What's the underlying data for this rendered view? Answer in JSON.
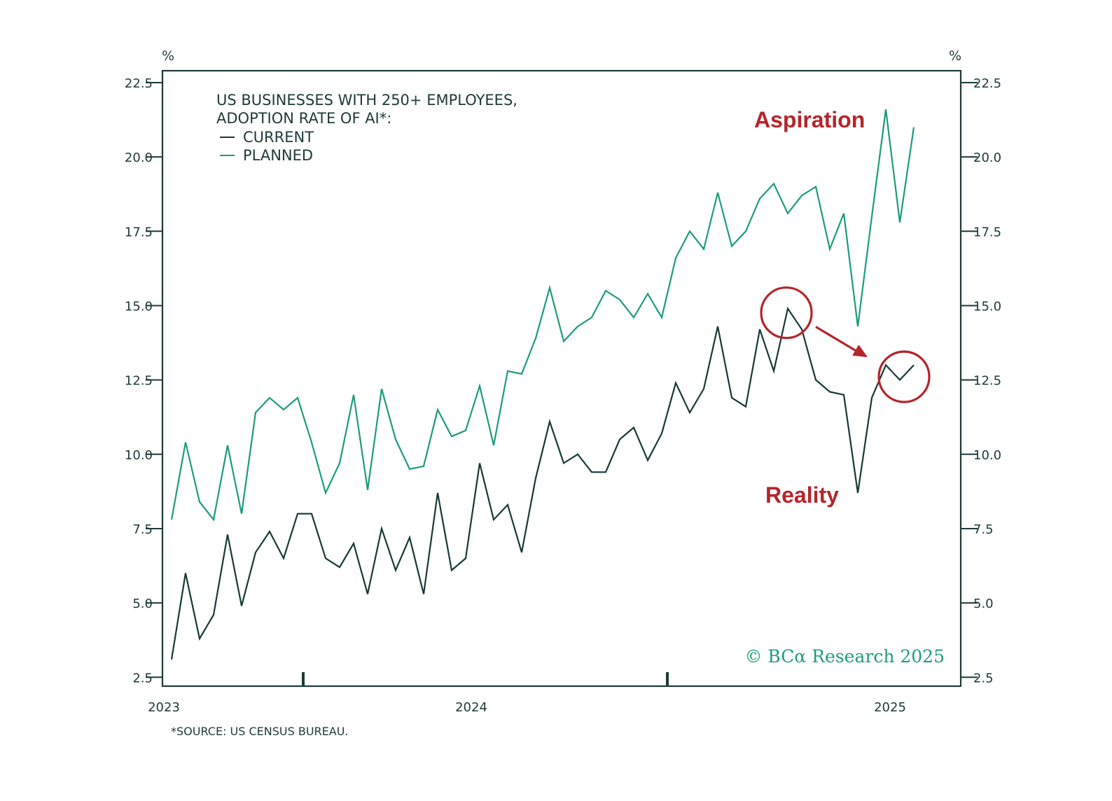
{
  "chart_data": {
    "type": "line",
    "title_lines": [
      "US BUSINESSES WITH 250+ EMPLOYEES,",
      "ADOPTION RATE OF AI*:"
    ],
    "y_unit_left": "%",
    "y_unit_right": "%",
    "ylim": [
      2.2,
      22.9
    ],
    "y_ticks": [
      "2.5",
      "5.0",
      "7.5",
      "10.0",
      "12.5",
      "15.0",
      "17.5",
      "20.0",
      "22.5"
    ],
    "x_tick_labels": [
      "2023",
      "2024",
      "2025"
    ],
    "x_label_positions": [
      0,
      22,
      52.5
    ],
    "x_minor_ticks": [
      9,
      35
    ],
    "xlim": [
      0,
      57
    ],
    "grid": false,
    "legend_placement": "top-left",
    "series": [
      {
        "name": "CURRENT",
        "color": "#163a36",
        "values": [
          3.1,
          6.0,
          3.8,
          4.6,
          7.3,
          4.9,
          6.7,
          7.4,
          6.5,
          8.0,
          8.0,
          6.5,
          6.2,
          7.0,
          5.3,
          7.5,
          6.1,
          7.2,
          5.3,
          8.7,
          6.1,
          6.5,
          9.7,
          7.8,
          8.3,
          6.7,
          9.2,
          11.1,
          9.7,
          10.0,
          9.4,
          9.4,
          10.5,
          10.9,
          9.8,
          10.7,
          12.4,
          11.4,
          12.2,
          14.3,
          11.9,
          11.6,
          14.2,
          12.8,
          14.9,
          14.2,
          12.5,
          12.1,
          12.0,
          8.7,
          11.9,
          13.0,
          12.5,
          13.0
        ]
      },
      {
        "name": "PLANNED",
        "color": "#1c9c7c",
        "values": [
          7.8,
          10.4,
          8.4,
          7.8,
          10.3,
          8.0,
          11.4,
          11.9,
          11.5,
          11.9,
          10.4,
          8.7,
          9.7,
          12.0,
          8.8,
          12.2,
          10.5,
          9.5,
          9.6,
          11.5,
          10.6,
          10.8,
          12.3,
          10.3,
          12.8,
          12.7,
          13.9,
          15.6,
          13.8,
          14.3,
          14.6,
          15.5,
          15.2,
          14.6,
          15.4,
          14.6,
          16.6,
          17.5,
          16.9,
          18.8,
          17.0,
          17.5,
          18.6,
          19.1,
          18.1,
          18.7,
          19.0,
          16.9,
          18.1,
          14.3,
          18.0,
          21.6,
          17.8,
          21.0
        ]
      }
    ],
    "annotations": {
      "aspiration": "Aspiration",
      "reality": "Reality",
      "circle_1": {
        "x": 44,
        "y": 14.9
      },
      "circle_2": {
        "x": 52,
        "y": 12.7
      }
    },
    "source": "*SOURCE: US CENSUS BUREAU.",
    "watermark": "© BCα Research 2025"
  },
  "colors": {
    "axis": "#1d3a38",
    "current": "#163a36",
    "planned": "#1c9c7c",
    "annotation_red": "#b5252c",
    "watermark": "#1c9c7c"
  }
}
